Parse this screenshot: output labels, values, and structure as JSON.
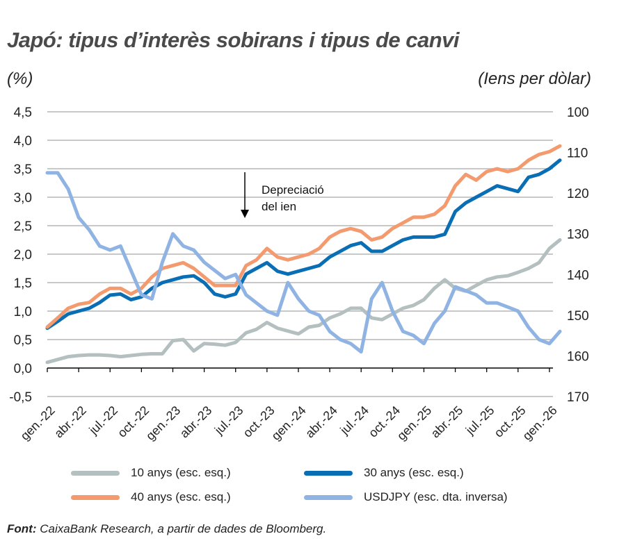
{
  "title": "Japó: tipus d’interès sobirans i tipus de canvi",
  "left_unit": "(%)",
  "right_unit": "(Iens per dòlar)",
  "source_label": "Font:",
  "source_text": "CaixaBank Research, a partir de dades de Bloomberg.",
  "chart_data": {
    "type": "line",
    "title": "Japó: tipus d’interès sobirans i tipus de canvi",
    "ylabel": "(%)",
    "y2label": "(Iens per dòlar)",
    "ylim": [
      -0.5,
      4.5
    ],
    "y_ticks": [
      "4,5",
      "4,0",
      "3,5",
      "3,0",
      "2,5",
      "2,0",
      "1,5",
      "1,0",
      "0,5",
      "0,0",
      "-0,5"
    ],
    "y_tick_values": [
      4.5,
      4.0,
      3.5,
      3.0,
      2.5,
      2.0,
      1.5,
      1.0,
      0.5,
      0.0,
      -0.5
    ],
    "y2lim": [
      100,
      170
    ],
    "y2_inverted": true,
    "y2_ticks": [
      "100",
      "110",
      "120",
      "130",
      "140",
      "150",
      "160",
      "170"
    ],
    "y2_tick_values": [
      100,
      110,
      120,
      130,
      140,
      150,
      160,
      170
    ],
    "x_ticks": [
      "gen.-22",
      "abr.-22",
      "jul.-22",
      "oct.-22",
      "gen.-23",
      "abr.-23",
      "jul.-23",
      "oct.-23",
      "gen.-24",
      "abr.-24",
      "jul.-24",
      "oct.-24",
      "gen.-25",
      "abr.-25",
      "jul.-25",
      "oct.-25",
      "gen.-26"
    ],
    "x_tick_dates": [
      "2022-01",
      "2022-04",
      "2022-07",
      "2022-10",
      "2023-01",
      "2023-04",
      "2023-07",
      "2023-10",
      "2024-01",
      "2024-04",
      "2024-07",
      "2024-10",
      "2025-01",
      "2025-04",
      "2025-07",
      "2025-10",
      "2026-01"
    ],
    "grid": true,
    "legend_placement": "bottom",
    "annotation": {
      "line1": "Depreciació",
      "line2": "del ien",
      "arrow": "down"
    },
    "x": [
      "2022-01",
      "2022-02",
      "2022-03",
      "2022-04",
      "2022-05",
      "2022-06",
      "2022-07",
      "2022-08",
      "2022-09",
      "2022-10",
      "2022-11",
      "2022-12",
      "2023-01",
      "2023-02",
      "2023-03",
      "2023-04",
      "2023-05",
      "2023-06",
      "2023-07",
      "2023-08",
      "2023-09",
      "2023-10",
      "2023-11",
      "2023-12",
      "2024-01",
      "2024-02",
      "2024-03",
      "2024-04",
      "2024-05",
      "2024-06",
      "2024-07",
      "2024-08",
      "2024-09",
      "2024-10",
      "2024-11",
      "2024-12",
      "2025-01",
      "2025-02",
      "2025-03",
      "2025-04",
      "2025-05",
      "2025-06",
      "2025-07",
      "2025-08",
      "2025-09",
      "2025-10",
      "2025-11",
      "2025-12",
      "2026-01",
      "2026-02"
    ],
    "series": [
      {
        "name": "10 anys (esc. esq.)",
        "axis": "left",
        "color": "#b4bfbf",
        "values": [
          0.1,
          0.15,
          0.2,
          0.22,
          0.23,
          0.23,
          0.22,
          0.2,
          0.22,
          0.24,
          0.25,
          0.25,
          0.48,
          0.5,
          0.3,
          0.43,
          0.42,
          0.4,
          0.45,
          0.62,
          0.68,
          0.8,
          0.7,
          0.65,
          0.6,
          0.72,
          0.75,
          0.88,
          0.95,
          1.05,
          1.05,
          0.88,
          0.85,
          0.95,
          1.05,
          1.1,
          1.2,
          1.4,
          1.55,
          1.4,
          1.35,
          1.45,
          1.55,
          1.6,
          1.62,
          1.68,
          1.75,
          1.85,
          2.1,
          2.25
        ]
      },
      {
        "name": "30 anys (esc. esq.)",
        "axis": "left",
        "color": "#0a6eb4",
        "values": [
          0.7,
          0.82,
          0.95,
          1.0,
          1.05,
          1.15,
          1.28,
          1.3,
          1.2,
          1.25,
          1.4,
          1.5,
          1.55,
          1.6,
          1.62,
          1.5,
          1.3,
          1.25,
          1.3,
          1.65,
          1.75,
          1.85,
          1.7,
          1.65,
          1.7,
          1.75,
          1.8,
          1.95,
          2.05,
          2.15,
          2.2,
          2.05,
          2.05,
          2.15,
          2.25,
          2.3,
          2.3,
          2.3,
          2.35,
          2.75,
          2.9,
          3.0,
          3.1,
          3.2,
          3.15,
          3.1,
          3.35,
          3.4,
          3.5,
          3.65
        ]
      },
      {
        "name": "40 anys (esc. esq.)",
        "axis": "left",
        "color": "#f39a6e",
        "values": [
          0.72,
          0.88,
          1.05,
          1.12,
          1.15,
          1.3,
          1.4,
          1.4,
          1.3,
          1.4,
          1.6,
          1.75,
          1.8,
          1.85,
          1.75,
          1.6,
          1.45,
          1.45,
          1.45,
          1.8,
          1.9,
          2.1,
          1.95,
          1.9,
          1.95,
          2.0,
          2.1,
          2.3,
          2.4,
          2.45,
          2.4,
          2.25,
          2.3,
          2.45,
          2.55,
          2.65,
          2.65,
          2.7,
          2.85,
          3.2,
          3.4,
          3.3,
          3.45,
          3.5,
          3.45,
          3.5,
          3.65,
          3.75,
          3.8,
          3.9
        ]
      },
      {
        "name": "USDJPY (esc. dta. inversa)",
        "axis": "right",
        "color": "#8fb3e3",
        "values": [
          115,
          115,
          119,
          126,
          129,
          133,
          134,
          133,
          139,
          145,
          146,
          137,
          130,
          133,
          134,
          137,
          139,
          141,
          140,
          145,
          147,
          149,
          150,
          142,
          146,
          149,
          150,
          154,
          156,
          157,
          159,
          146,
          142,
          149,
          154,
          155,
          157,
          152,
          149,
          143,
          144,
          145,
          147,
          147,
          148,
          149,
          153,
          156,
          157,
          154
        ]
      }
    ]
  }
}
